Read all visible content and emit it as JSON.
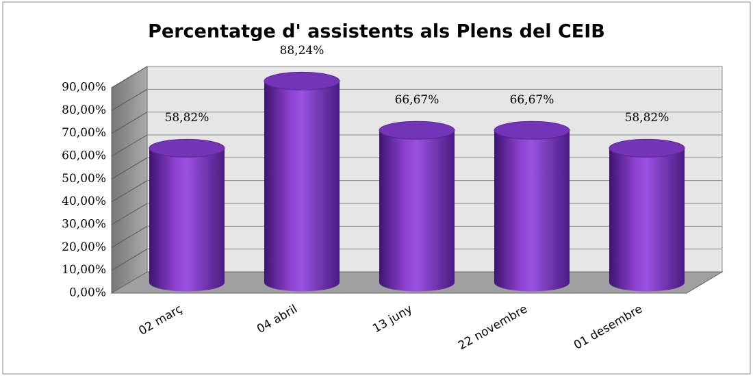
{
  "chart_data": {
    "type": "bar3d",
    "title": "Percentatge d' assistents als Plens del CEIB",
    "categories": [
      "02 març",
      "04 abril",
      "13 juny",
      "22 novembre",
      "01 desembre"
    ],
    "values": [
      58.82,
      88.24,
      66.67,
      66.67,
      58.82
    ],
    "value_labels": [
      "58,82%",
      "88,24%",
      "66,67%",
      "66,67%",
      "58,82%"
    ],
    "color": "#7030a0",
    "ylim": [
      0,
      90
    ],
    "yticks": [
      {
        "value": 0,
        "label": "0,00%"
      },
      {
        "value": 10,
        "label": "10,00%"
      },
      {
        "value": 20,
        "label": "20,00%"
      },
      {
        "value": 30,
        "label": "30,00%"
      },
      {
        "value": 40,
        "label": "40,00%"
      },
      {
        "value": 50,
        "label": "50,00%"
      },
      {
        "value": 60,
        "label": "60,00%"
      },
      {
        "value": 70,
        "label": "70,00%"
      },
      {
        "value": 80,
        "label": "80,00%"
      },
      {
        "value": 90,
        "label": "90,00%"
      }
    ],
    "grid": true
  }
}
